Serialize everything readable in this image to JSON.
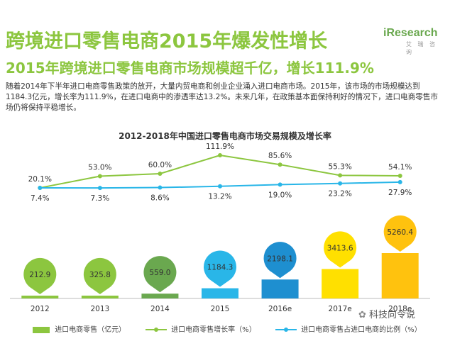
{
  "headline": "跨境进口零售电商2015年爆发性增长",
  "subheadline": "2015年跨境进口零售电商市场规模超千亿，增长111.9%",
  "brand": {
    "name": "iResearch",
    "sub": "艾 瑞 咨 询"
  },
  "paragraph": "随着2014年下半年进口电商零售政策的放开，大量内贸电商和创业企业涌入进口电商市场。2015年，该市场的市场规模达到1184.3亿元，增长率为111.9%，在进口电商中的渗透率达13.2%。未来几年，在政策基本面保持利好的情况下，进口电商零售市场仍将保持平稳增长。",
  "watermark": "科技向令说",
  "chart_data": {
    "type": "bar",
    "title": "2012-2018年中国进口零售电商市场交易规模及增长率",
    "categories": [
      "2012",
      "2013",
      "2014",
      "2015",
      "2016e",
      "2017e",
      "2018e"
    ],
    "series": [
      {
        "name": "进口电商零售（亿元）",
        "type": "bar",
        "values": [
          212.9,
          325.8,
          559.0,
          1184.3,
          2198.1,
          3413.6,
          5260.4
        ],
        "labels": [
          "212.9",
          "325.8",
          "559.0",
          "1184.3",
          "2198.1",
          "3413.6",
          "5260.4"
        ],
        "colors": [
          "#8cc63f",
          "#8cc63f",
          "#6aa84f",
          "#29b6e8",
          "#1e8fd0",
          "#ffe000",
          "#ffc20e"
        ]
      },
      {
        "name": "进口电商零售增长率（%）",
        "type": "line",
        "values": [
          20.1,
          53.0,
          60.0,
          111.9,
          85.6,
          55.3,
          54.1
        ],
        "labels": [
          "20.1%",
          "53.0%",
          "60.0%",
          "111.9%",
          "85.6%",
          "55.3%",
          "54.1%"
        ],
        "color": "#8cc63f"
      },
      {
        "name": "进口电商零售占进口电商的比例（%）",
        "type": "line",
        "values": [
          7.4,
          7.3,
          8.6,
          13.2,
          19.0,
          23.2,
          27.9
        ],
        "labels": [
          "7.4%",
          "7.3%",
          "8.6%",
          "13.2%",
          "19.0%",
          "23.2%",
          "27.9%"
        ],
        "color": "#29b6e8"
      }
    ],
    "legend": "bottom"
  }
}
